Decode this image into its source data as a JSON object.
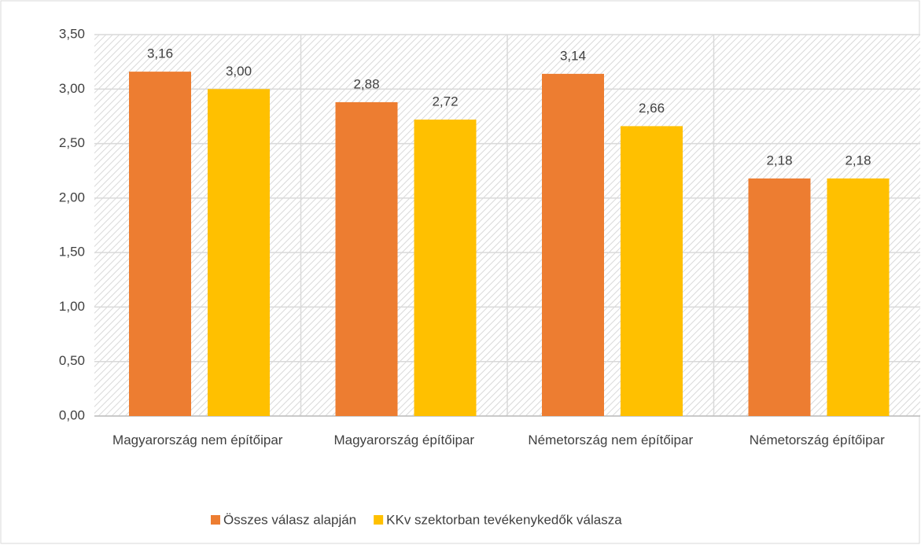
{
  "chart_data": {
    "type": "bar",
    "categories": [
      "Magyarország nem építőipar",
      "Magyarország építőipar",
      "Németország nem építőipar",
      "Németország építőipar"
    ],
    "series": [
      {
        "name": "Összes válasz alapján",
        "color": "#ed7d31",
        "values": [
          3.16,
          2.88,
          3.14,
          2.18
        ],
        "value_labels": [
          "3,16",
          "2,88",
          "3,14",
          "2,18"
        ]
      },
      {
        "name": "KKv szektorban tevékenykedők válasza",
        "color": "#ffc000",
        "values": [
          3.0,
          2.72,
          2.66,
          2.18
        ],
        "value_labels": [
          "3,00",
          "2,72",
          "2,66",
          "2,18"
        ]
      }
    ],
    "ylim": [
      0,
      3.5
    ],
    "yticks": [
      {
        "value": 0,
        "label": "0,00"
      },
      {
        "value": 0.5,
        "label": "0,50"
      },
      {
        "value": 1,
        "label": "1,00"
      },
      {
        "value": 1.5,
        "label": "1,50"
      },
      {
        "value": 2,
        "label": "2,00"
      },
      {
        "value": 2.5,
        "label": "2,50"
      },
      {
        "value": 3,
        "label": "3,00"
      },
      {
        "value": 3.5,
        "label": "3,50"
      }
    ],
    "grid": true,
    "legend": "bottom"
  }
}
